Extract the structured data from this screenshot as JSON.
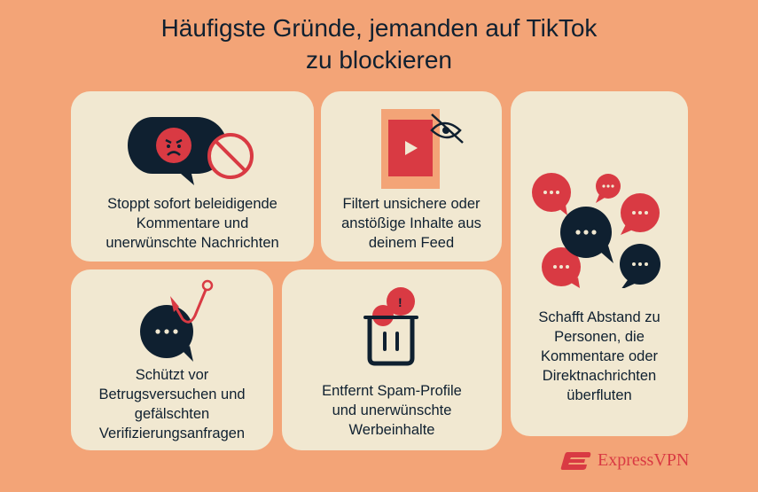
{
  "title": {
    "line1": "Häufigste Gründe, jemanden auf TikTok",
    "line2": "zu blockieren"
  },
  "cards": [
    {
      "icon": "angry-message-blocked-icon",
      "lines": [
        "Stoppt sofort beleidigende",
        "Kommentare und",
        "unerwünschte Nachrichten"
      ]
    },
    {
      "icon": "hidden-video-icon",
      "lines": [
        "Filtert unsichere oder",
        "anstößige Inhalte aus",
        "deinem Feed"
      ]
    },
    {
      "icon": "many-chat-bubbles-icon",
      "lines": [
        "Schafft Abstand zu",
        "Personen, die",
        "Kommentare oder",
        "Direktnachrichten",
        "überfluten"
      ]
    },
    {
      "icon": "phishing-hook-message-icon",
      "lines": [
        "Schützt vor",
        "Betrugsversuchen und",
        "gefälschten",
        "Verifizierungsanfragen"
      ]
    },
    {
      "icon": "spam-trash-icon",
      "lines": [
        "Entfernt Spam-Profile",
        "und unerwünschte",
        "Werbeinhalte"
      ]
    }
  ],
  "brand": {
    "name": "ExpressVPN"
  },
  "colors": {
    "background": "#f3a477",
    "card": "#f1e8d1",
    "dark": "#0f2030",
    "red": "#d93a43"
  }
}
